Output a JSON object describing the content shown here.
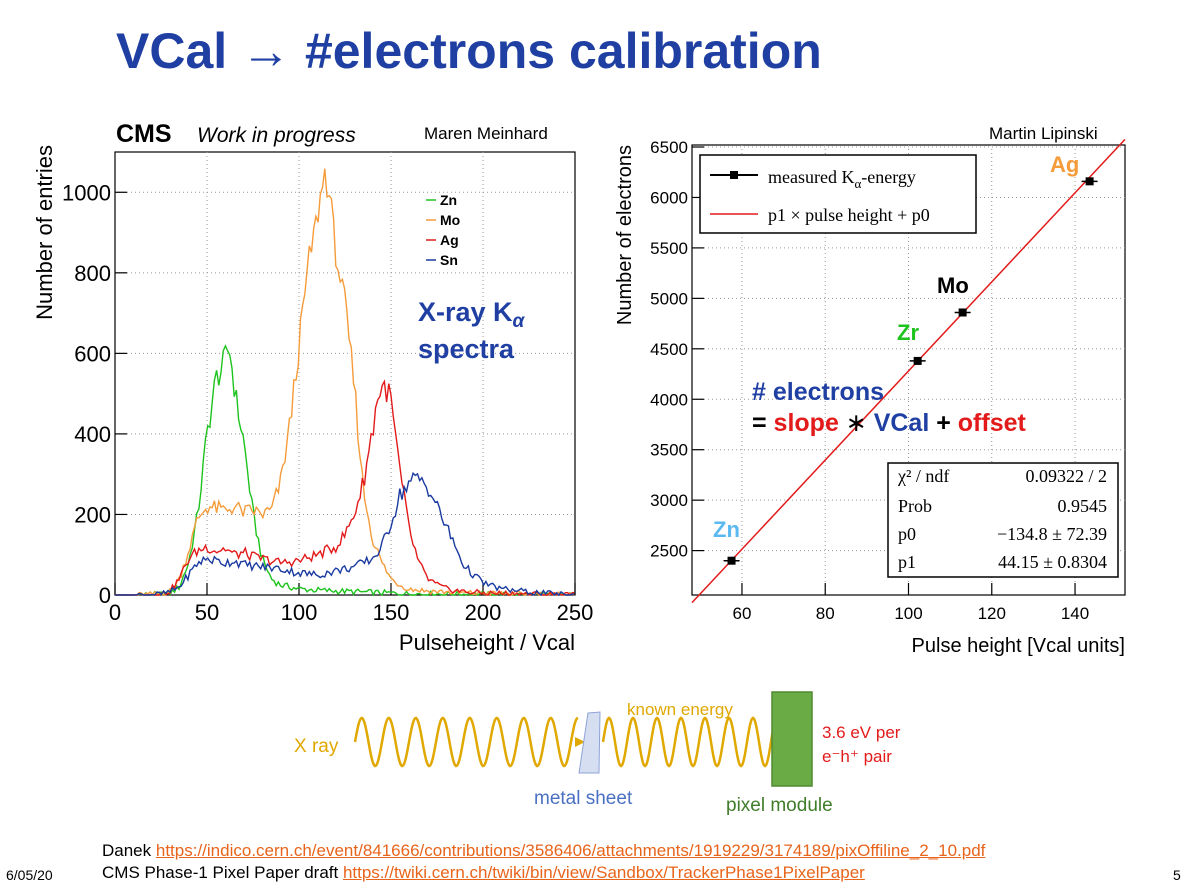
{
  "slide": {
    "title": "VCal → #electrons calibration",
    "date": "6/05/20",
    "page_number": "5",
    "refs": [
      {
        "prefix": "Danek ",
        "link": "https://indico.cern.ch/event/841666/contributions/3586406/attachments/1919229/3174189/pixOffiline_2_10.pdf"
      },
      {
        "prefix": "CMS Phase-1 Pixel Paper draft ",
        "link": "https://twiki.cern.ch/twiki/bin/view/Sandbox/TrackerPhase1PixelPaper"
      }
    ]
  },
  "left_plot": {
    "cms": "CMS",
    "wip": "Work in progress",
    "author": "Maren Meinhard",
    "annotation_line1": "X-ray K",
    "annotation_sub": "α",
    "annotation_line2": "spectra"
  },
  "right_plot": {
    "author": "Martin Lipinski",
    "legend_measured": "measured K",
    "legend_measured_sub": "α",
    "legend_measured_suffix": "-energy",
    "legend_fit": "p1 × pulse height + p0",
    "point_labels": {
      "zn": "Zn",
      "zr": "Zr",
      "mo": "Mo",
      "ag": "Ag"
    },
    "formula_line1": "# electrons",
    "formula_eq": "= ",
    "formula_slope": "slope",
    "formula_times": " ∗ ",
    "formula_vcal": "VCal",
    "formula_plus": " + ",
    "formula_offset": "offset",
    "stats": [
      {
        "label": "χ² / ndf",
        "value": "0.09322 / 2"
      },
      {
        "label": "Prob",
        "value": "0.9545"
      },
      {
        "label": "p0",
        "value": "−134.8 ± 72.39"
      },
      {
        "label": "p1",
        "value": "44.15 ± 0.8304"
      }
    ]
  },
  "diagram": {
    "xray": "X ray",
    "known_energy": "known energy",
    "metal_sheet": "metal sheet",
    "pixel_module": "pixel module",
    "energy_line1": "3.6 eV per",
    "energy_line2": "e⁻h⁺ pair"
  },
  "chart_data": [
    {
      "type": "line",
      "title": "",
      "xlabel": "Pulseheight / Vcal",
      "ylabel": "Number of entries",
      "xlim": [
        0,
        250
      ],
      "ylim": [
        0,
        1100
      ],
      "xticks": [
        0,
        50,
        100,
        150,
        200,
        250
      ],
      "yticks": [
        0,
        200,
        400,
        600,
        800,
        1000
      ],
      "legend_position": "top-center",
      "series": [
        {
          "name": "Zn",
          "color": "#1ec31e",
          "x": [
            10,
            25,
            30,
            35,
            40,
            45,
            50,
            55,
            58,
            62,
            66,
            70,
            75,
            80,
            85,
            90,
            100,
            110,
            130,
            160,
            250
          ],
          "y": [
            0,
            2,
            5,
            20,
            80,
            200,
            400,
            540,
            560,
            620,
            480,
            380,
            200,
            90,
            40,
            25,
            15,
            12,
            8,
            3,
            0
          ]
        },
        {
          "name": "Mo",
          "color": "#f59b3a",
          "x": [
            10,
            25,
            30,
            35,
            40,
            45,
            50,
            55,
            60,
            65,
            70,
            75,
            80,
            85,
            90,
            95,
            100,
            105,
            110,
            114,
            117,
            120,
            125,
            130,
            135,
            140,
            145,
            150,
            155,
            160,
            170,
            190,
            250
          ],
          "y": [
            0,
            2,
            10,
            40,
            110,
            190,
            220,
            215,
            210,
            220,
            205,
            210,
            200,
            210,
            280,
            420,
            620,
            820,
            940,
            1050,
            980,
            850,
            720,
            520,
            260,
            140,
            80,
            40,
            25,
            15,
            10,
            5,
            0
          ]
        },
        {
          "name": "Ag",
          "color": "#e31a1a",
          "x": [
            10,
            25,
            30,
            35,
            40,
            45,
            50,
            55,
            60,
            65,
            70,
            75,
            80,
            90,
            100,
            110,
            120,
            125,
            130,
            135,
            140,
            143,
            147,
            150,
            155,
            160,
            165,
            170,
            175,
            180,
            190,
            200,
            250
          ],
          "y": [
            0,
            2,
            10,
            40,
            90,
            110,
            120,
            110,
            115,
            100,
            105,
            95,
            90,
            80,
            85,
            100,
            120,
            150,
            200,
            280,
            410,
            500,
            520,
            480,
            300,
            160,
            80,
            40,
            25,
            15,
            8,
            5,
            0
          ]
        },
        {
          "name": "Sn",
          "color": "#1a3aa0",
          "x": [
            10,
            25,
            30,
            35,
            40,
            45,
            50,
            55,
            60,
            65,
            70,
            80,
            90,
            100,
            110,
            120,
            130,
            140,
            145,
            150,
            155,
            160,
            165,
            170,
            175,
            180,
            185,
            190,
            200,
            210,
            230,
            250
          ],
          "y": [
            0,
            2,
            8,
            20,
            50,
            80,
            90,
            85,
            80,
            85,
            75,
            70,
            65,
            55,
            50,
            60,
            70,
            90,
            120,
            180,
            250,
            280,
            290,
            270,
            220,
            170,
            120,
            70,
            30,
            15,
            5,
            0
          ]
        }
      ]
    },
    {
      "type": "scatter",
      "title": "",
      "xlabel": "Pulse height [Vcal units]",
      "ylabel": "Number of electrons",
      "xlim": [
        48,
        152
      ],
      "ylim": [
        2060,
        6520
      ],
      "xticks": [
        60,
        80,
        100,
        120,
        140
      ],
      "yticks": [
        2500,
        3000,
        3500,
        4000,
        4500,
        5000,
        5500,
        6000,
        6500
      ],
      "grid": true,
      "legend_position": "top-left",
      "series": [
        {
          "name": "measured Kα-energy",
          "color": "#000000",
          "points": [
            {
              "label": "Zn",
              "x": 57.5,
              "y": 2400
            },
            {
              "label": "Zr",
              "x": 102.2,
              "y": 4380
            },
            {
              "label": "Mo",
              "x": 113,
              "y": 4860
            },
            {
              "label": "Ag",
              "x": 143.5,
              "y": 6160
            }
          ]
        },
        {
          "name": "p1 × pulse height + p0",
          "color": "#e31a1a",
          "fit": {
            "p0": -134.8,
            "p1": 44.15
          }
        }
      ]
    }
  ]
}
